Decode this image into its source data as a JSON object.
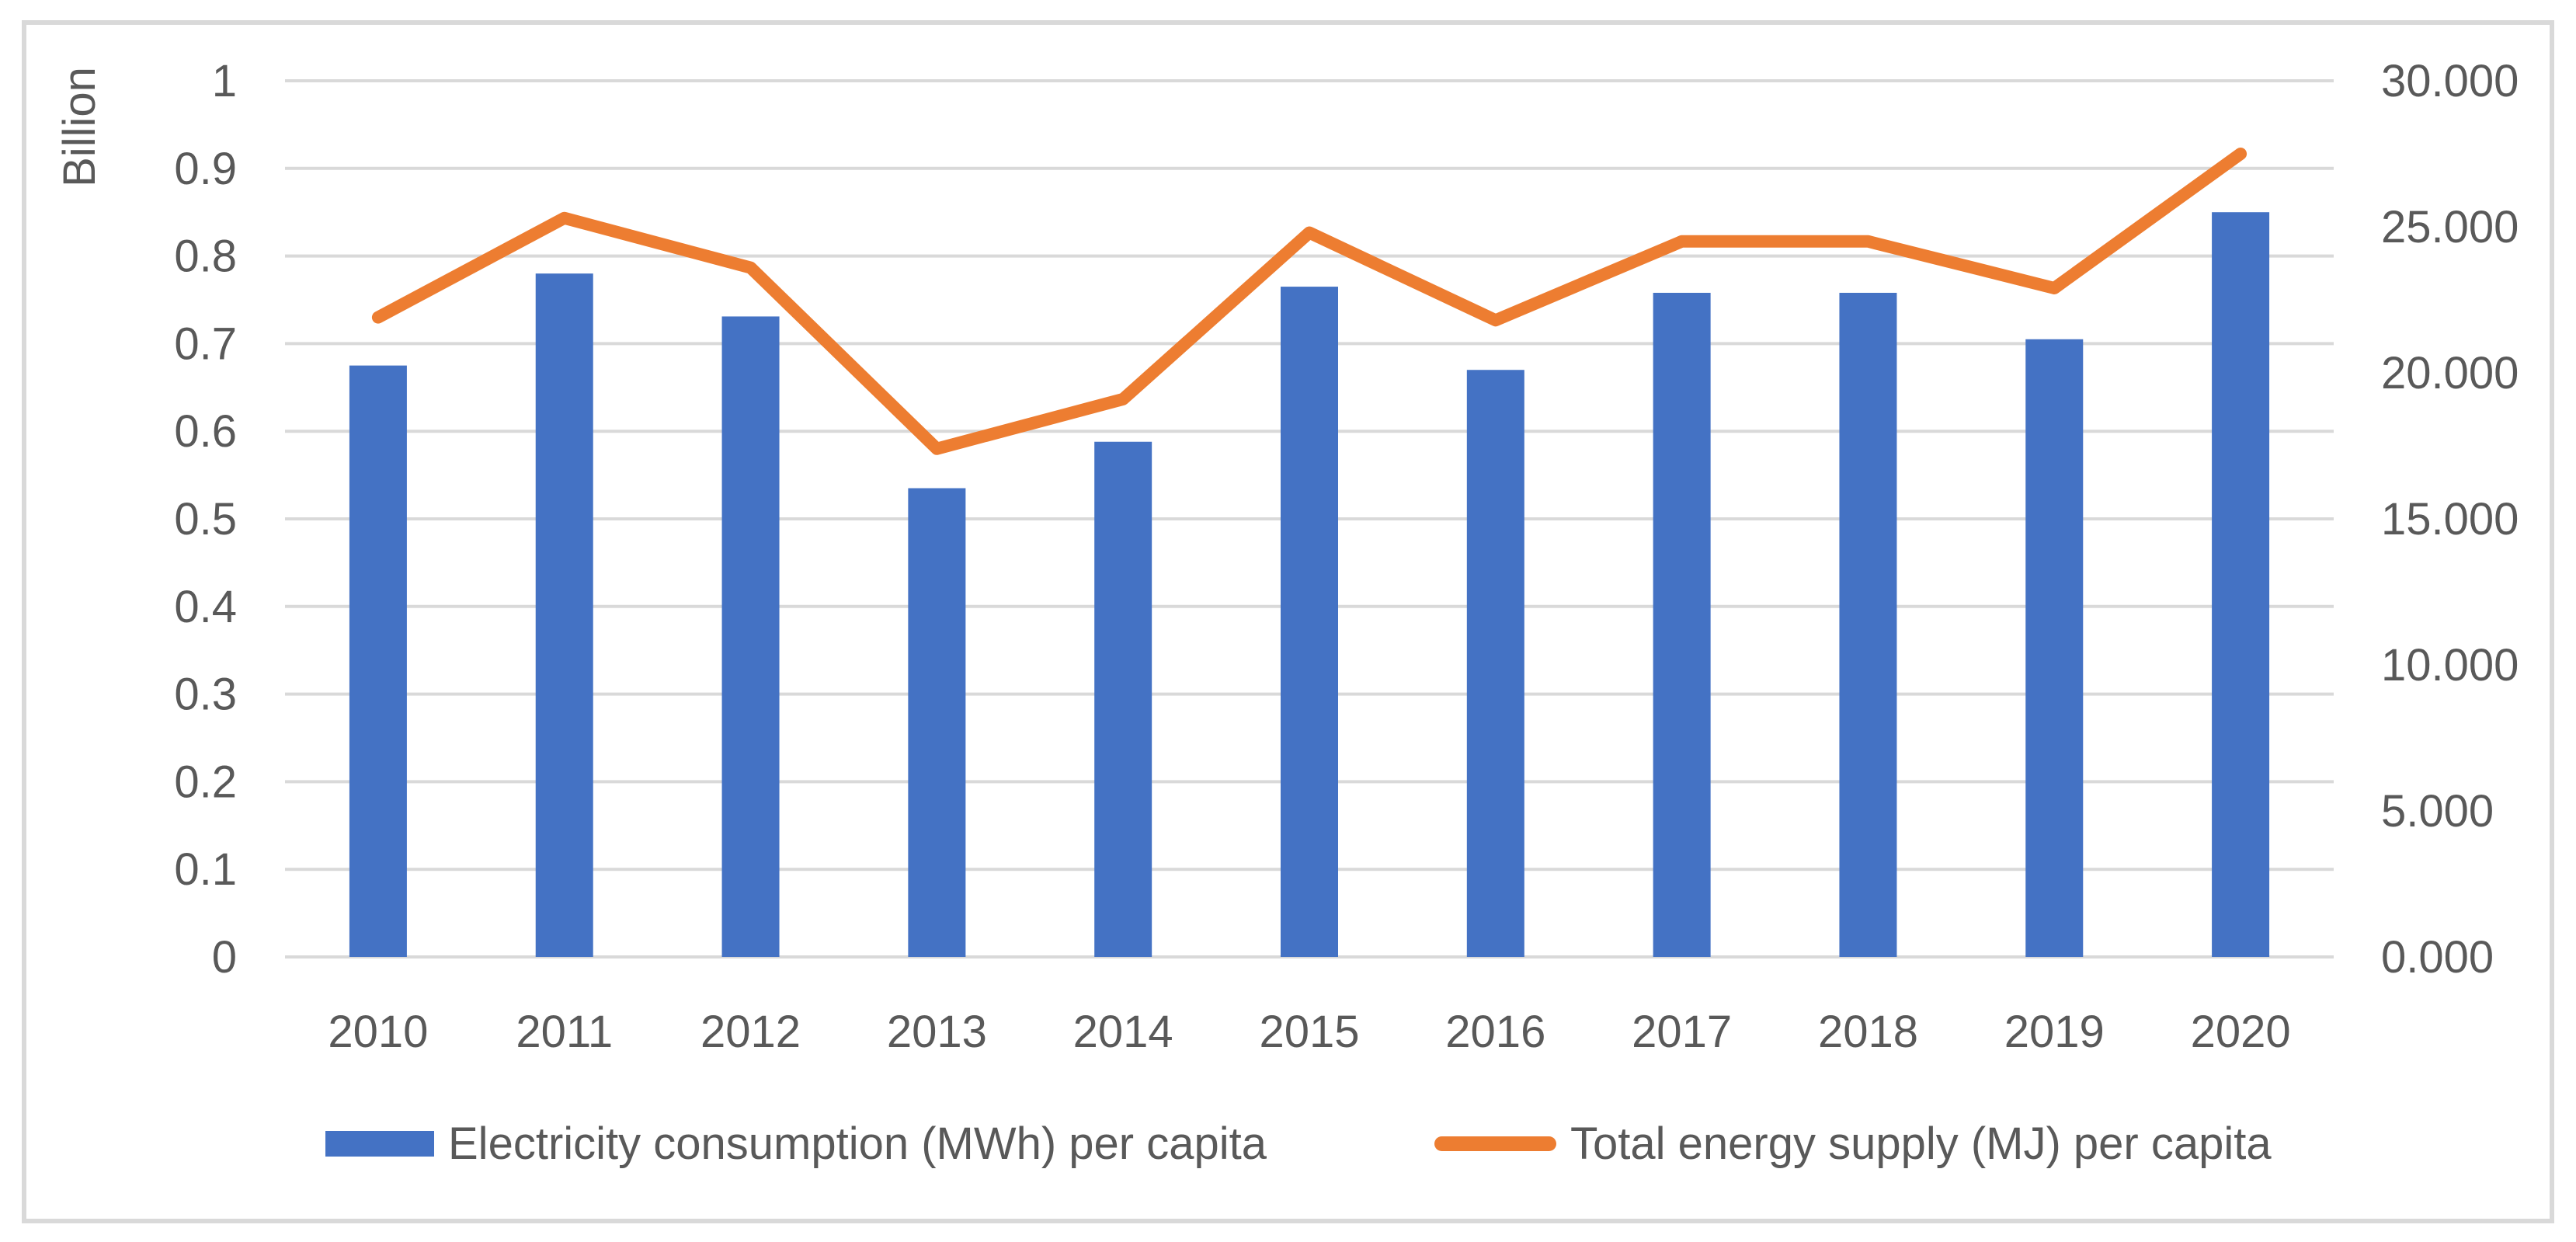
{
  "chart_data": {
    "type": "combo",
    "categories": [
      "2010",
      "2011",
      "2012",
      "2013",
      "2014",
      "2015",
      "2016",
      "2017",
      "2018",
      "2019",
      "2020"
    ],
    "series": [
      {
        "name": "Electricity consumption (MWh) per capita",
        "type": "bar",
        "axis": "left",
        "color": "#4472C4",
        "values": [
          0.675,
          0.78,
          0.731,
          0.535,
          0.588,
          0.765,
          0.67,
          0.758,
          0.758,
          0.705,
          0.85
        ]
      },
      {
        "name": "Total energy supply (MJ) per capita",
        "type": "line",
        "axis": "right",
        "color": "#ED7D31",
        "values": [
          21.9,
          25.3,
          23.6,
          17.4,
          19.1,
          24.8,
          21.8,
          24.5,
          24.5,
          22.9,
          27.5
        ]
      }
    ],
    "left_axis": {
      "title": "Billion",
      "min": 0,
      "max": 1,
      "step": 0.1,
      "tick_labels": [
        "0",
        "0.1",
        "0.2",
        "0.3",
        "0.4",
        "0.5",
        "0.6",
        "0.7",
        "0.8",
        "0.9",
        "1"
      ]
    },
    "right_axis": {
      "min": 0,
      "max": 30,
      "step": 5,
      "tick_labels": [
        "0.000",
        "5.000",
        "10.000",
        "15.000",
        "20.000",
        "25.000",
        "30.000"
      ]
    },
    "grid": true,
    "legend_position": "bottom",
    "colors": {
      "gridline": "#D9D9D9",
      "frame_border": "#D9D9D9",
      "axis_text": "#595959",
      "bar_fill": "#4472C4",
      "line_stroke": "#ED7D31"
    }
  }
}
